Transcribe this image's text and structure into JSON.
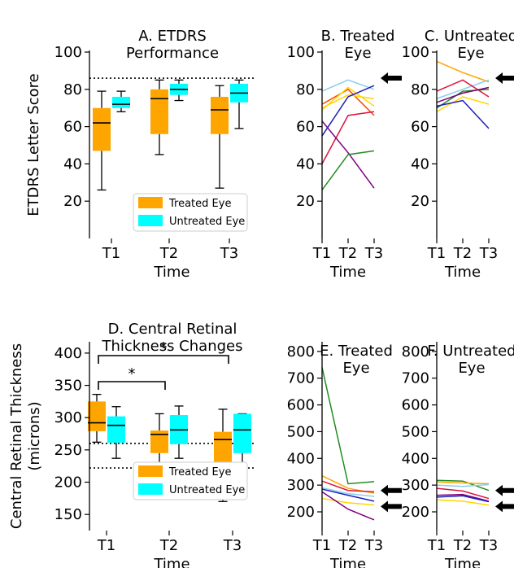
{
  "colors": {
    "treated": "#ffa500",
    "untreated": "#00ffff",
    "axis": "#000000"
  },
  "chart_data": [
    {
      "id": "A",
      "type": "box",
      "title": "A. ETDRS\nPerformance",
      "xlabel": "Time",
      "ylabel": "ETDRS Letter Score",
      "categories": [
        "T1",
        "T2",
        "T3"
      ],
      "ylim": [
        0,
        100
      ],
      "yticks": [
        20,
        40,
        60,
        80,
        100
      ],
      "reference_lines": [
        86
      ],
      "legend": {
        "placement": "bottom-right",
        "entries": [
          "Treated Eye",
          "Untreated Eye"
        ]
      },
      "series": [
        {
          "name": "Treated Eye",
          "boxes": [
            {
              "min": 26,
              "q1": 47,
              "median": 62,
              "q3": 70,
              "max": 79
            },
            {
              "min": 45,
              "q1": 56,
              "median": 75,
              "q3": 80,
              "max": 85
            },
            {
              "min": 27,
              "q1": 56,
              "median": 69,
              "q3": 76,
              "max": 82
            }
          ]
        },
        {
          "name": "Untreated Eye",
          "boxes": [
            {
              "min": 68,
              "q1": 70,
              "median": 72,
              "q3": 76,
              "max": 79
            },
            {
              "min": 74,
              "q1": 77,
              "median": 80,
              "q3": 83,
              "max": 85
            },
            {
              "min": 59,
              "q1": 73,
              "median": 78,
              "q3": 83,
              "max": 85
            }
          ]
        }
      ]
    },
    {
      "id": "B",
      "type": "line",
      "title": "B. Treated\nEye",
      "xlabel": "Time",
      "categories": [
        "T1",
        "T2",
        "T3"
      ],
      "ylim": [
        0,
        100
      ],
      "yticks": [
        20,
        40,
        60,
        80,
        100
      ],
      "arrows": [
        86
      ],
      "lines": [
        {
          "color": "#87ceeb",
          "values": [
            79,
            85,
            80
          ]
        },
        {
          "color": "#ff4500",
          "values": [
            72,
            80,
            66
          ]
        },
        {
          "color": "#ffd700",
          "values": [
            70,
            77,
            75
          ]
        },
        {
          "color": "#ffd700",
          "values": [
            69,
            81,
            71
          ]
        },
        {
          "color": "#1e1ebe",
          "values": [
            55,
            76,
            82
          ]
        },
        {
          "color": "#dc143c",
          "values": [
            40,
            66,
            68
          ]
        },
        {
          "color": "#800080",
          "values": [
            63,
            46,
            27
          ]
        },
        {
          "color": "#228b22",
          "values": [
            26,
            45,
            47
          ]
        }
      ]
    },
    {
      "id": "C",
      "type": "line",
      "title": "C. Untreated\nEye",
      "xlabel": "Time",
      "categories": [
        "T1",
        "T2",
        "T3"
      ],
      "ylim": [
        0,
        100
      ],
      "yticks": [
        20,
        40,
        60,
        80,
        100
      ],
      "arrows": [
        86
      ],
      "lines": [
        {
          "color": "#ffa500",
          "values": [
            95,
            89,
            84
          ]
        },
        {
          "color": "#87ceeb",
          "values": [
            75,
            80,
            85
          ]
        },
        {
          "color": "#dc143c",
          "values": [
            79,
            85,
            76
          ]
        },
        {
          "color": "#228b22",
          "values": [
            70,
            79,
            80
          ]
        },
        {
          "color": "#800080",
          "values": [
            73,
            78,
            81
          ]
        },
        {
          "color": "#ffd700",
          "values": [
            68,
            76,
            72
          ]
        },
        {
          "color": "#1e1ebe",
          "values": [
            71,
            74,
            59
          ]
        }
      ]
    },
    {
      "id": "D",
      "type": "box",
      "title": "D. Central Retinal\nThickness Changes",
      "xlabel": "Time",
      "ylabel": "Central Retinal Thickness\n(microns)",
      "categories": [
        "T1",
        "T2",
        "T3"
      ],
      "ylim": [
        125,
        415
      ],
      "yticks": [
        150,
        200,
        250,
        300,
        350,
        400
      ],
      "reference_lines": [
        260,
        222
      ],
      "significance": [
        {
          "from": 0,
          "to": 1,
          "label": "*"
        },
        {
          "from": 0,
          "to": 2,
          "label": "*"
        }
      ],
      "legend": {
        "placement": "bottom-right",
        "entries": [
          "Treated Eye",
          "Untreated Eye"
        ]
      },
      "series": [
        {
          "name": "Treated Eye",
          "boxes": [
            {
              "min": 262,
              "q1": 279,
              "median": 292,
              "q3": 325,
              "max": 336
            },
            {
              "min": 210,
              "q1": 245,
              "median": 274,
              "q3": 280,
              "max": 306
            },
            {
              "min": 170,
              "q1": 231,
              "median": 266,
              "q3": 278,
              "max": 313
            }
          ]
        },
        {
          "name": "Untreated Eye",
          "boxes": [
            {
              "min": 237,
              "q1": 261,
              "median": 288,
              "q3": 302,
              "max": 317
            },
            {
              "min": 237,
              "q1": 259,
              "median": 281,
              "q3": 304,
              "max": 318
            },
            {
              "min": 226,
              "q1": 245,
              "median": 281,
              "q3": 306,
              "max": 306
            }
          ]
        }
      ]
    },
    {
      "id": "E",
      "type": "line",
      "title": "E. Treated\nEye",
      "xlabel": "Time",
      "categories": [
        "T1",
        "T2",
        "T3"
      ],
      "ylim": [
        130,
        830
      ],
      "yticks": [
        200,
        300,
        400,
        500,
        600,
        700,
        800
      ],
      "arrows": [
        280,
        220
      ],
      "lines": [
        {
          "color": "#228b22",
          "values": [
            740,
            305,
            313
          ]
        },
        {
          "color": "#ffa500",
          "values": [
            335,
            288,
            270
          ]
        },
        {
          "color": "#dc143c",
          "values": [
            315,
            280,
            275
          ]
        },
        {
          "color": "#87ceeb",
          "values": [
            290,
            268,
            258
          ]
        },
        {
          "color": "#1e1ebe",
          "values": [
            285,
            262,
            240
          ]
        },
        {
          "color": "#ffd700",
          "values": [
            250,
            234,
            226
          ]
        },
        {
          "color": "#800080",
          "values": [
            275,
            210,
            170
          ]
        }
      ]
    },
    {
      "id": "F",
      "type": "line",
      "title": "F. Untreated\nEye",
      "xlabel": "Time",
      "categories": [
        "T1",
        "T2",
        "T3"
      ],
      "ylim": [
        130,
        830
      ],
      "yticks": [
        200,
        300,
        400,
        500,
        600,
        700,
        800
      ],
      "arrows": [
        280,
        220
      ],
      "lines": [
        {
          "color": "#228b22",
          "values": [
            318,
            315,
            280
          ]
        },
        {
          "color": "#ffa500",
          "values": [
            312,
            308,
            305
          ]
        },
        {
          "color": "#87ceeb",
          "values": [
            300,
            295,
            302
          ]
        },
        {
          "color": "#dc143c",
          "values": [
            288,
            278,
            250
          ]
        },
        {
          "color": "#800080",
          "values": [
            262,
            265,
            240
          ]
        },
        {
          "color": "#1e1ebe",
          "values": [
            255,
            260,
            238
          ]
        },
        {
          "color": "#ffd700",
          "values": [
            245,
            240,
            225
          ]
        }
      ]
    }
  ]
}
